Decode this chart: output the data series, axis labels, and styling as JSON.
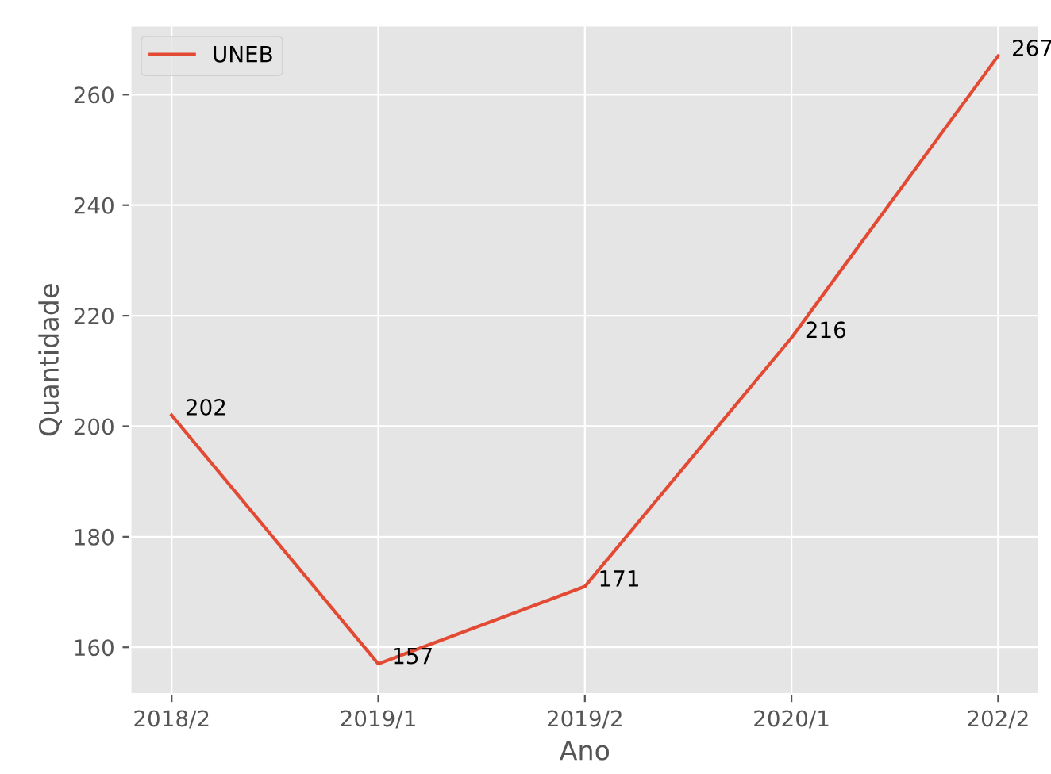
{
  "chart_data": {
    "type": "line",
    "xlabel": "Ano",
    "ylabel": "Quantidade",
    "categories": [
      "2018/2",
      "2019/1",
      "2019/2",
      "2020/1",
      "202/2"
    ],
    "series": [
      {
        "name": "UNEB",
        "color": "#e24a33",
        "values": [
          202,
          157,
          171,
          216,
          267
        ]
      }
    ],
    "ylim": [
      151.5,
      272.5
    ],
    "yticks": [
      160,
      180,
      200,
      220,
      240,
      260
    ],
    "grid": true,
    "legend": "top left",
    "data_labels": true
  }
}
